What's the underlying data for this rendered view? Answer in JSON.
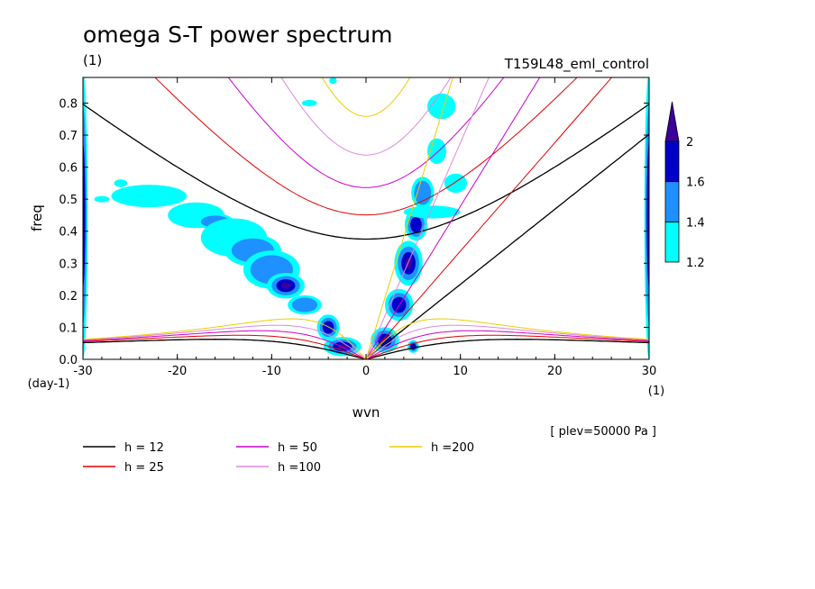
{
  "header": {
    "title": "omega S-T power spectrum",
    "units": "(1)",
    "experiment": "T159L48_eml_control",
    "plev": "[ plev=50000 Pa ]"
  },
  "chart_data": {
    "type": "heatmap",
    "xlabel": "wvn",
    "ylabel": "freq",
    "x_unit": "(1)",
    "y_unit": "(day-1)",
    "xlim": [
      -30,
      30
    ],
    "ylim": [
      0,
      0.88
    ],
    "x_ticks": [
      -30,
      -20,
      -10,
      0,
      10,
      20,
      30
    ],
    "y_ticks": [
      0.0,
      0.1,
      0.2,
      0.3,
      0.4,
      0.5,
      0.6,
      0.7,
      0.8
    ],
    "x_tick_labels": [
      "-30",
      "-20",
      "-10",
      "0",
      "10",
      "20",
      "30"
    ],
    "y_tick_labels": [
      "0.0",
      "0.1",
      "0.2",
      "0.3",
      "0.4",
      "0.5",
      "0.6",
      "0.7",
      "0.8"
    ],
    "colorbar": {
      "levels": [
        1.2,
        1.4,
        1.6,
        2
      ],
      "labels": [
        "1.2",
        "1.4",
        "1.6",
        "2"
      ],
      "colors": [
        "#00ffff",
        "#1e90ff",
        "#0000c8",
        "#3c009b"
      ],
      "extend": "max"
    },
    "shading_blobs": [
      {
        "x": -30,
        "y": 0.45,
        "rx": 0.5,
        "ry": 0.45,
        "level": 2
      },
      {
        "x": 30,
        "y": 0.45,
        "rx": 0.5,
        "ry": 0.45,
        "level": 2
      },
      {
        "x": -23,
        "y": 0.51,
        "rx": 4,
        "ry": 0.035,
        "level": 0
      },
      {
        "x": -18,
        "y": 0.45,
        "rx": 3,
        "ry": 0.04,
        "level": 0
      },
      {
        "x": -16,
        "y": 0.43,
        "rx": 2,
        "ry": 0.025,
        "level": 1
      },
      {
        "x": -14,
        "y": 0.38,
        "rx": 3.5,
        "ry": 0.06,
        "level": 0
      },
      {
        "x": -12,
        "y": 0.34,
        "rx": 3,
        "ry": 0.05,
        "level": 1
      },
      {
        "x": -10,
        "y": 0.28,
        "rx": 3,
        "ry": 0.06,
        "level": 1
      },
      {
        "x": -8.5,
        "y": 0.23,
        "rx": 2,
        "ry": 0.04,
        "level": 3
      },
      {
        "x": -6.5,
        "y": 0.17,
        "rx": 1.8,
        "ry": 0.03,
        "level": 1
      },
      {
        "x": -4,
        "y": 0.1,
        "rx": 1.2,
        "ry": 0.04,
        "level": 2
      },
      {
        "x": -2.5,
        "y": 0.04,
        "rx": 2,
        "ry": 0.03,
        "level": 3
      },
      {
        "x": -26,
        "y": 0.55,
        "rx": 0.7,
        "ry": 0.012,
        "level": 0
      },
      {
        "x": -28,
        "y": 0.5,
        "rx": 0.8,
        "ry": 0.01,
        "level": 0
      },
      {
        "x": 2,
        "y": 0.06,
        "rx": 1.5,
        "ry": 0.04,
        "level": 2
      },
      {
        "x": 3.5,
        "y": 0.17,
        "rx": 1.5,
        "ry": 0.05,
        "level": 2
      },
      {
        "x": 4.5,
        "y": 0.3,
        "rx": 1.5,
        "ry": 0.07,
        "level": 3
      },
      {
        "x": 5.3,
        "y": 0.42,
        "rx": 1.2,
        "ry": 0.05,
        "level": 2
      },
      {
        "x": 6,
        "y": 0.52,
        "rx": 1.2,
        "ry": 0.05,
        "level": 1
      },
      {
        "x": 7,
        "y": 0.46,
        "rx": 3,
        "ry": 0.02,
        "level": 0
      },
      {
        "x": 7.5,
        "y": 0.65,
        "rx": 1,
        "ry": 0.04,
        "level": 0
      },
      {
        "x": 8,
        "y": 0.79,
        "rx": 1.5,
        "ry": 0.04,
        "level": 0
      },
      {
        "x": 5,
        "y": 0.04,
        "rx": 0.6,
        "ry": 0.02,
        "level": 2
      },
      {
        "x": -6,
        "y": 0.8,
        "rx": 0.8,
        "ry": 0.01,
        "level": 0
      },
      {
        "x": -3.5,
        "y": 0.87,
        "rx": 0.4,
        "ry": 0.01,
        "level": 0
      },
      {
        "x": 9.5,
        "y": 0.55,
        "rx": 1.2,
        "ry": 0.03,
        "level": 0
      }
    ],
    "dispersion_curves": [
      {
        "name": "h = 12",
        "h": 12,
        "color": "#000000",
        "width": 1.3
      },
      {
        "name": "h = 25",
        "h": 25,
        "color": "#e00000",
        "width": 1
      },
      {
        "name": "h = 50",
        "h": 50,
        "color": "#cc00cc",
        "width": 1
      },
      {
        "name": "h =100",
        "h": 100,
        "color": "#dd88dd",
        "width": 1
      },
      {
        "name": "h =200",
        "h": 200,
        "color": "#eecc00",
        "width": 1
      }
    ]
  }
}
